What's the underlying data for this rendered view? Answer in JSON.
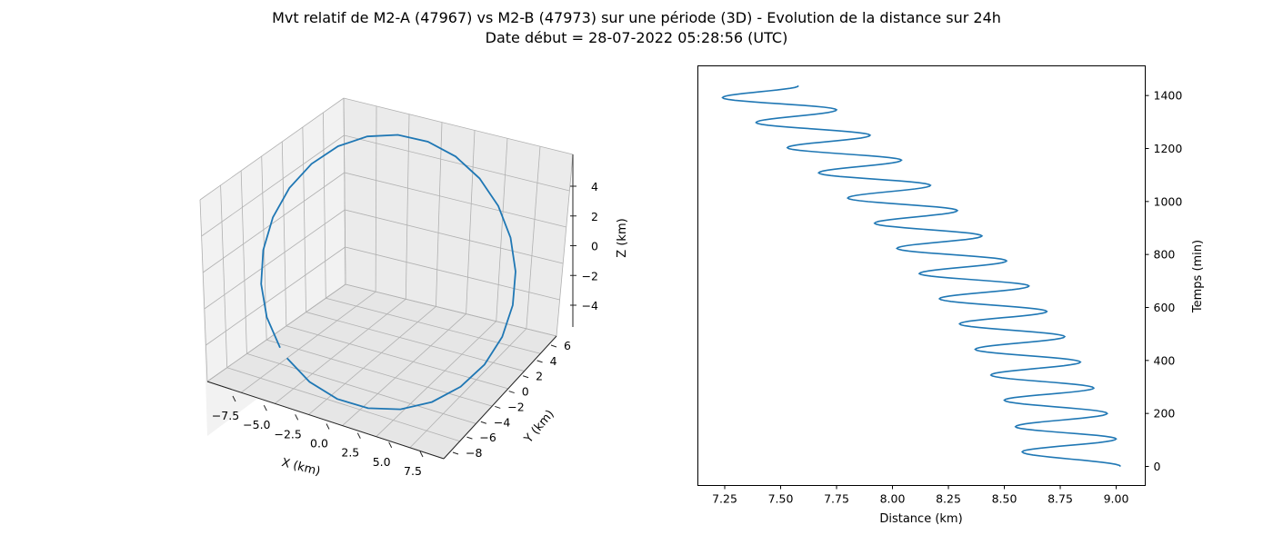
{
  "title_line1": "Mvt relatif de M2-A (47967) vs M2-B (47973) sur une période (3D) - Evolution de la distance sur 24h",
  "title_line2": "Date début = 28-07-2022 05:28:56 (UTC)",
  "colors": {
    "series": "#1f77b4",
    "pane": "#f2f2f2",
    "grid": "#b0b0b0"
  },
  "chart_data": [
    {
      "type": "line",
      "projection": "3d",
      "title": "",
      "xlabel": "X (km)",
      "ylabel": "Y (km)",
      "zlabel": "Z (km)",
      "xlim": [
        -9.2,
        9.2
      ],
      "ylim": [
        -8.2,
        8.2
      ],
      "zlim": [
        -5.5,
        5.5
      ],
      "x_ticks": [
        "−7.5",
        "−5.0",
        "−2.5",
        "0.0",
        "2.5",
        "5.0",
        "7.5"
      ],
      "y_ticks": [
        "−8",
        "−6",
        "−4",
        "−2",
        "0",
        "2",
        "4",
        "6"
      ],
      "z_ticks": [
        "−4",
        "−2",
        "0",
        "2",
        "4"
      ],
      "grid": true,
      "series": [
        {
          "name": "",
          "shape": "closed relative orbit (ellipse)",
          "points_count": 25
        }
      ]
    },
    {
      "type": "line",
      "title": "",
      "xlabel": "Distance (km)",
      "ylabel": "Temps (min)",
      "y_axis_side": "right",
      "xlim": [
        7.13,
        9.13
      ],
      "ylim": [
        -72,
        1512
      ],
      "x_ticks": [
        "7.25",
        "7.50",
        "7.75",
        "8.00",
        "8.25",
        "8.50",
        "8.75",
        "9.00"
      ],
      "y_ticks": [
        "0",
        "200",
        "400",
        "600",
        "800",
        "1000",
        "1200",
        "1400"
      ],
      "grid": false,
      "series": [
        {
          "name": "",
          "x": [
            9.02,
            8.58,
            9.0,
            8.55,
            8.96,
            8.5,
            8.9,
            8.44,
            8.84,
            8.37,
            8.77,
            8.3,
            8.69,
            8.21,
            8.61,
            8.12,
            8.51,
            8.02,
            8.4,
            7.92,
            8.29,
            7.8,
            8.17,
            7.67,
            8.04,
            7.53,
            7.9,
            7.39,
            7.75,
            7.24,
            7.58
          ],
          "y": [
            0,
            55,
            104,
            150,
            200,
            250,
            296,
            345,
            394,
            442,
            490,
            538,
            585,
            633,
            681,
            728,
            776,
            823,
            870,
            918,
            966,
            1013,
            1061,
            1108,
            1156,
            1203,
            1250,
            1298,
            1346,
            1392,
            1437
          ]
        }
      ]
    }
  ]
}
